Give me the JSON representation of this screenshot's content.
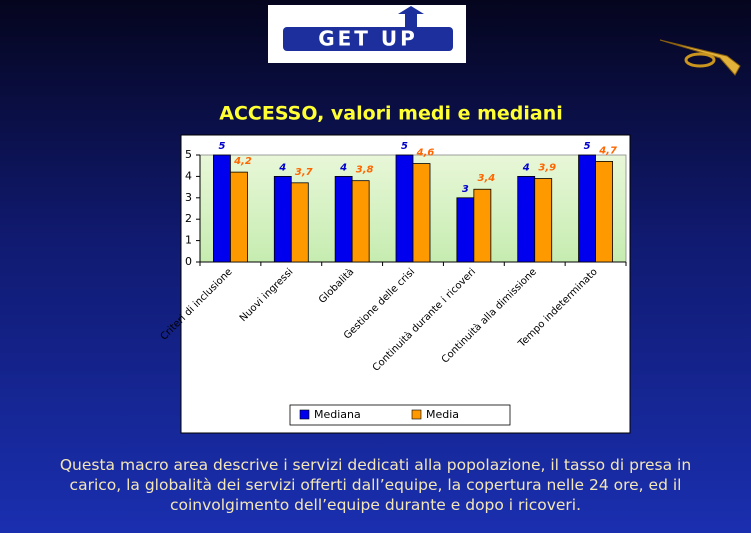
{
  "logo": "GET UP",
  "chart_data": {
    "type": "bar",
    "title": "ACCESSO, valori medi e mediani",
    "categories": [
      "Criteri di inclusione",
      "Nuovi ingressi",
      "Globalità",
      "Gestione delle crisi",
      "Continuità durante i ricoveri",
      "Continuità alla dimissione",
      "Tempo indeterminato"
    ],
    "series": [
      {
        "name": "Mediana",
        "color": "#0000ee",
        "values": [
          5,
          4,
          4,
          5,
          3,
          4,
          5
        ]
      },
      {
        "name": "Media",
        "color": "#ff9900",
        "values": [
          4.2,
          3.7,
          3.8,
          4.6,
          3.4,
          3.9,
          4.7
        ],
        "value_labels": [
          "4,2",
          "3,7",
          "3,8",
          "4,6",
          "3,4",
          "3,9",
          "4,7"
        ]
      }
    ],
    "ylim": [
      0,
      5
    ],
    "yticks": [
      0,
      1,
      2,
      3,
      4,
      5
    ],
    "legend": "bottom"
  },
  "description": "Questa macro area descrive i servizi dedicati alla popolazione, il tasso di presa in carico, la globalità dei servizi offerti dall’equipe, la copertura nelle 24 ore, ed il coinvolgimento dell’equipe durante e dopo i ricoveri."
}
